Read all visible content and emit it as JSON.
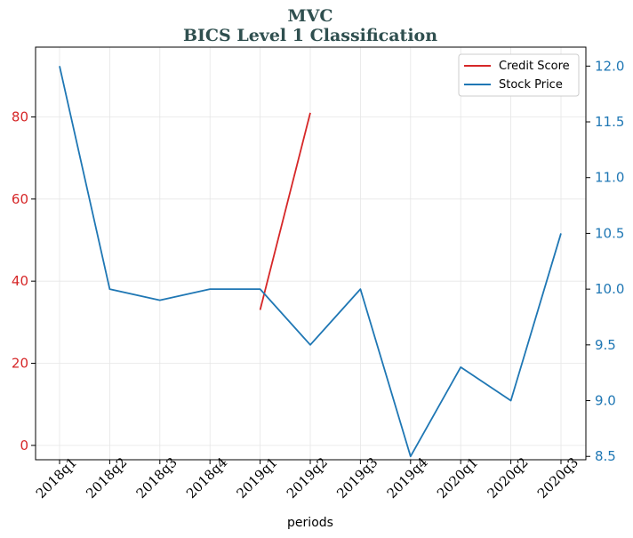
{
  "chart_data": {
    "type": "line",
    "title": "MVC",
    "subtitle": "BICS Level 1 Classification",
    "xlabel": "periods",
    "ylabel_left": "",
    "ylabel_right": "",
    "categories": [
      "2018q1",
      "2018q2",
      "2018q3",
      "2018q4",
      "2019q1",
      "2019q2",
      "2019q3",
      "2019q4",
      "2020q1",
      "2020q2",
      "2020q3"
    ],
    "left_axis": {
      "ylim": [
        -3.5,
        97
      ],
      "ticks": [
        0,
        20,
        40,
        60,
        80
      ],
      "color": "#d62728"
    },
    "right_axis": {
      "ylim": [
        8.47,
        12.17
      ],
      "ticks": [
        "8.5",
        "9.0",
        "9.5",
        "10.0",
        "10.5",
        "11.0",
        "11.5",
        "12.0"
      ],
      "color": "#1f77b4"
    },
    "grid": true,
    "legend_position": "top-right",
    "series": [
      {
        "name": "Credit Score",
        "axis": "left",
        "color": "#d62728",
        "values": [
          null,
          null,
          null,
          null,
          33,
          81,
          null,
          null,
          null,
          null,
          null
        ]
      },
      {
        "name": "Stock Price",
        "axis": "right",
        "color": "#1f77b4",
        "values": [
          12.0,
          10.0,
          9.9,
          10.0,
          10.0,
          9.5,
          10.0,
          8.5,
          9.3,
          9.0,
          10.5
        ]
      }
    ]
  }
}
